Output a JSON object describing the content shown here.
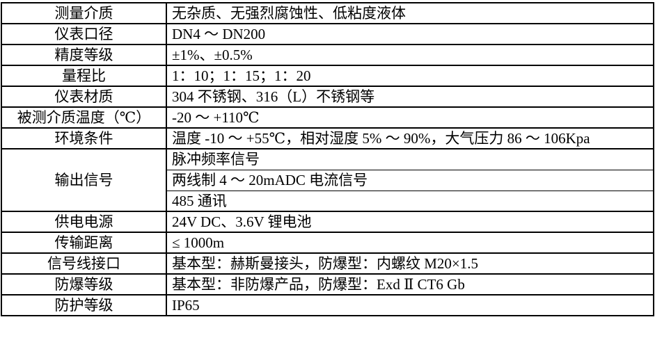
{
  "colors": {
    "border": "#000000",
    "background": "#ffffff",
    "text": "#000000"
  },
  "table": {
    "rows": [
      {
        "label": "测量介质",
        "values": [
          "无杂质、无强烈腐蚀性、低粘度液体"
        ]
      },
      {
        "label": "仪表口径",
        "values": [
          "DN4 ～ DN200"
        ]
      },
      {
        "label": "精度等级",
        "values": [
          "±1%、±0.5%"
        ]
      },
      {
        "label": "量程比",
        "values": [
          "1：10；1：15；1：20"
        ]
      },
      {
        "label": "仪表材质",
        "values": [
          "304 不锈钢、316（L）不锈钢等"
        ]
      },
      {
        "label": "被测介质温度（℃）",
        "values": [
          "-20 ～ +110℃"
        ]
      },
      {
        "label": "环境条件",
        "values": [
          "温度 -10 ～ +55℃，相对湿度 5% ～ 90%，大气压力 86 ～ 106Kpa"
        ]
      },
      {
        "label": "输出信号",
        "values": [
          "脉冲频率信号",
          "两线制 4 ～ 20mADC 电流信号",
          "485 通讯"
        ]
      },
      {
        "label": "供电电源",
        "values": [
          "24V DC、3.6V 锂电池"
        ]
      },
      {
        "label": "传输距离",
        "values": [
          "≤ 1000m"
        ]
      },
      {
        "label": "信号线接口",
        "values": [
          "基本型：赫斯曼接头，防爆型：内螺纹 M20×1.5"
        ]
      },
      {
        "label": "防爆等级",
        "values": [
          "基本型：非防爆产品，防爆型：Exd Ⅱ CT6 Gb"
        ]
      },
      {
        "label": "防护等级",
        "values": [
          "IP65"
        ]
      }
    ]
  }
}
